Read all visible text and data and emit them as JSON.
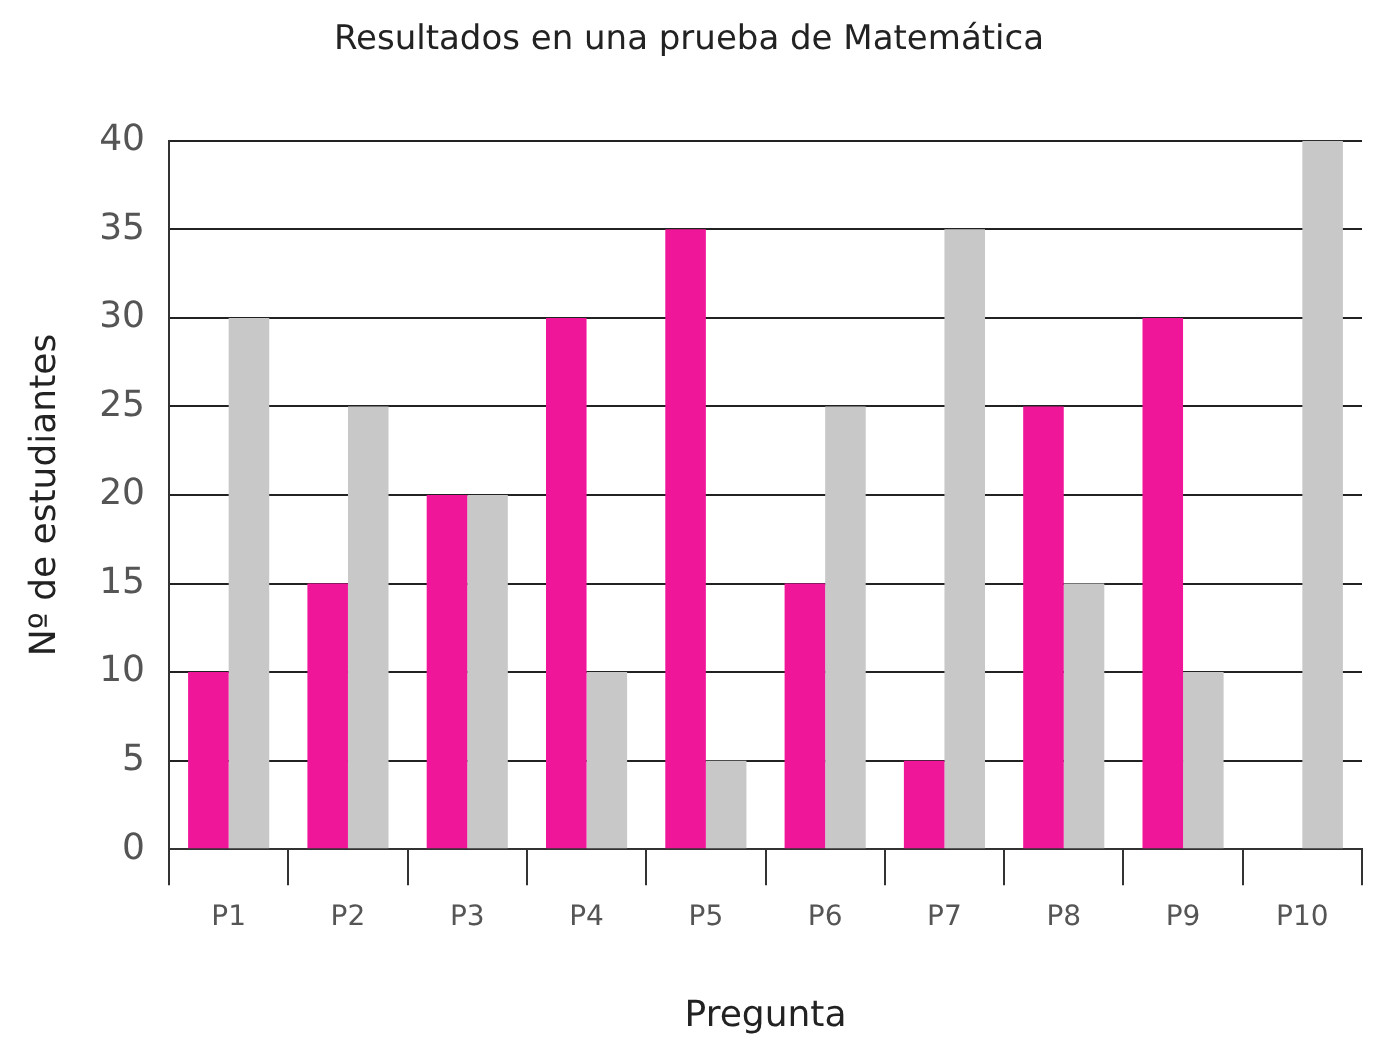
{
  "chart_data": {
    "type": "bar",
    "title": "Resultados en una prueba de Matemática",
    "xlabel": "Pregunta",
    "ylabel": "Nº de estudiantes",
    "categories": [
      "P1",
      "P2",
      "P3",
      "P4",
      "P5",
      "P6",
      "P7",
      "P8",
      "P9",
      "P10"
    ],
    "series": [
      {
        "color": "#f0169a",
        "values": [
          10,
          15,
          20,
          30,
          35,
          15,
          5,
          25,
          30,
          0
        ]
      },
      {
        "color": "#c8c8c8",
        "values": [
          30,
          25,
          20,
          10,
          5,
          25,
          35,
          15,
          10,
          40
        ]
      }
    ],
    "ylim": [
      0,
      40
    ],
    "yticks": [
      0,
      5,
      10,
      15,
      20,
      25,
      30,
      35,
      40
    ],
    "grid": "y",
    "legend": false
  }
}
